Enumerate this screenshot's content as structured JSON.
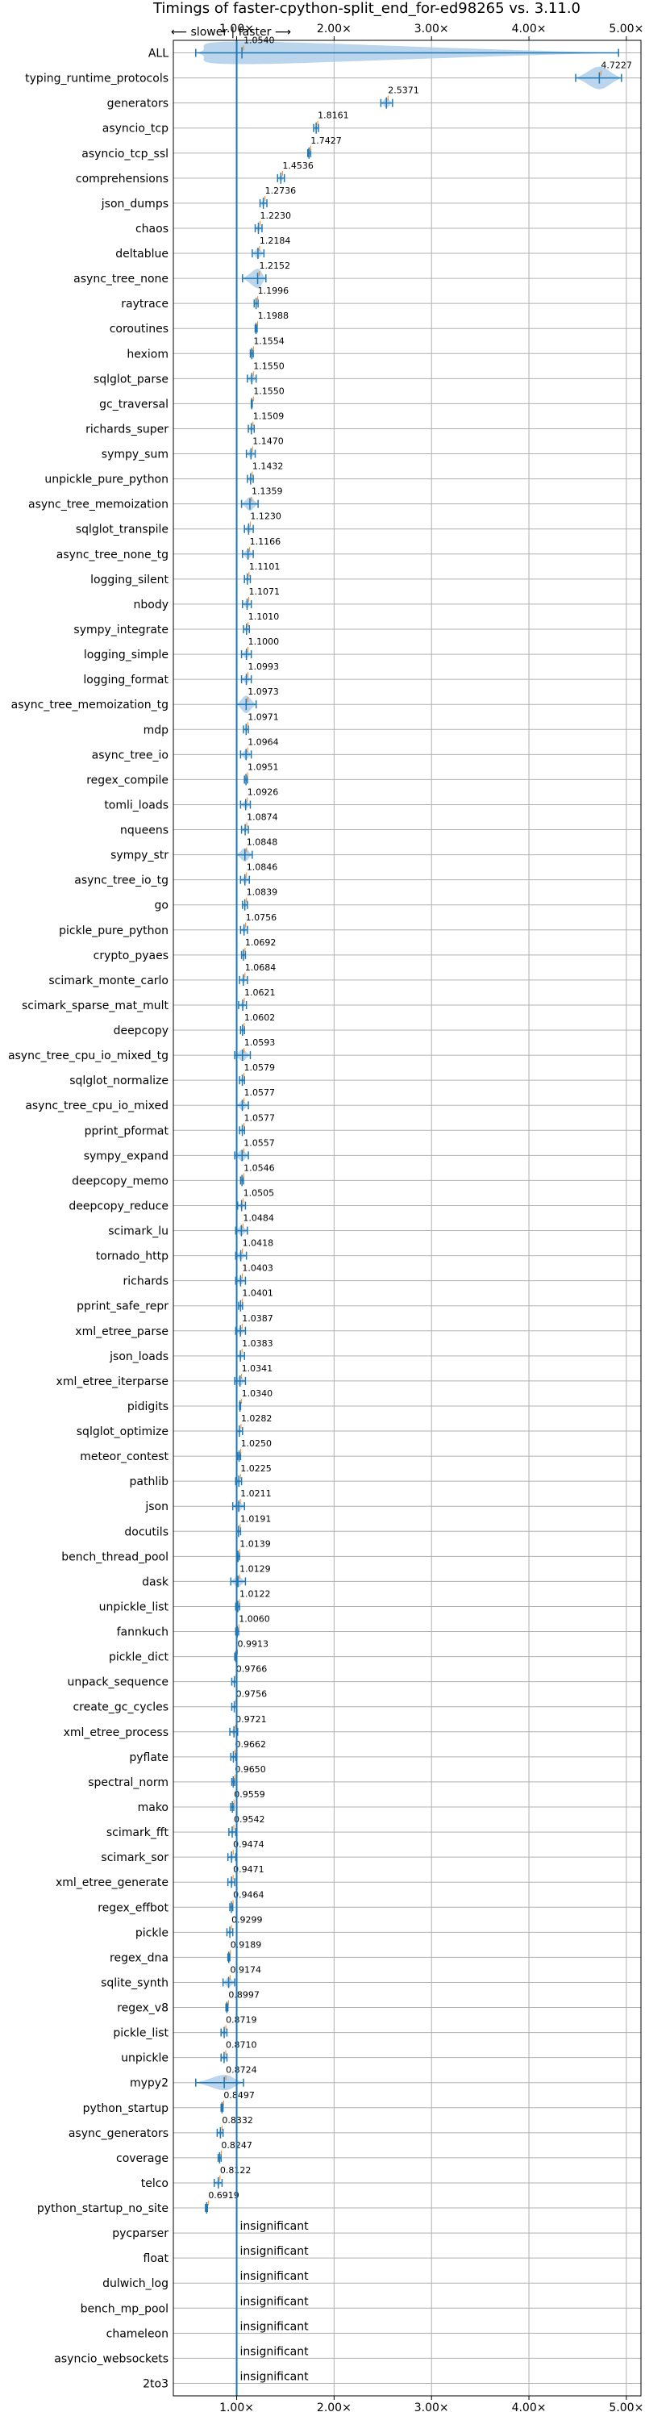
{
  "chart_data": {
    "type": "violin",
    "title": "Timings of faster-cpython-split_end_for-ed98265 vs. 3.11.0",
    "direction_label": "⟵ slower | faster ⟶",
    "xlim": [
      0.35,
      5.15
    ],
    "xticks": [
      1.0,
      2.0,
      3.0,
      4.0,
      5.0
    ],
    "xtick_labels": [
      "1.00×",
      "2.00×",
      "3.00×",
      "4.00×",
      "5.00×"
    ],
    "grid": true,
    "reference_line": 1.0,
    "colors": {
      "body": "#a9cbe7",
      "line": "#1f77b4",
      "median": "#ff7f0e"
    },
    "rows": [
      {
        "name": "ALL",
        "value": 1.054,
        "label": "1.0540",
        "min": 0.58,
        "max": 4.92,
        "spread": 0.25
      },
      {
        "name": "typing_runtime_protocols",
        "value": 4.7227,
        "label": "4.7227",
        "min": 4.48,
        "max": 4.95,
        "spread": 0.2
      },
      {
        "name": "generators",
        "value": 2.5371,
        "label": "2.5371",
        "min": 2.48,
        "max": 2.6,
        "spread": 0.05
      },
      {
        "name": "asyncio_tcp",
        "value": 1.8161,
        "label": "1.8161",
        "min": 1.79,
        "max": 1.84,
        "spread": 0.02
      },
      {
        "name": "asyncio_tcp_ssl",
        "value": 1.7427,
        "label": "1.7427",
        "min": 1.73,
        "max": 1.76,
        "spread": 0.01
      },
      {
        "name": "comprehensions",
        "value": 1.4536,
        "label": "1.4536",
        "min": 1.42,
        "max": 1.49,
        "spread": 0.03
      },
      {
        "name": "json_dumps",
        "value": 1.2736,
        "label": "1.2736",
        "min": 1.24,
        "max": 1.31,
        "spread": 0.03
      },
      {
        "name": "chaos",
        "value": 1.223,
        "label": "1.2230",
        "min": 1.19,
        "max": 1.26,
        "spread": 0.03
      },
      {
        "name": "deltablue",
        "value": 1.2184,
        "label": "1.2184",
        "min": 1.16,
        "max": 1.28,
        "spread": 0.05
      },
      {
        "name": "async_tree_none",
        "value": 1.2152,
        "label": "1.2152",
        "min": 1.06,
        "max": 1.3,
        "spread": 0.1
      },
      {
        "name": "raytrace",
        "value": 1.1996,
        "label": "1.1996",
        "min": 1.18,
        "max": 1.22,
        "spread": 0.02
      },
      {
        "name": "coroutines",
        "value": 1.1988,
        "label": "1.1988",
        "min": 1.19,
        "max": 1.21,
        "spread": 0.01
      },
      {
        "name": "hexiom",
        "value": 1.1554,
        "label": "1.1554",
        "min": 1.14,
        "max": 1.17,
        "spread": 0.01
      },
      {
        "name": "sqlglot_parse",
        "value": 1.155,
        "label": "1.1550",
        "min": 1.11,
        "max": 1.2,
        "spread": 0.04
      },
      {
        "name": "gc_traversal",
        "value": 1.155,
        "label": "1.1550",
        "min": 1.15,
        "max": 1.16,
        "spread": 0.005
      },
      {
        "name": "richards_super",
        "value": 1.1509,
        "label": "1.1509",
        "min": 1.12,
        "max": 1.18,
        "spread": 0.03
      },
      {
        "name": "sympy_sum",
        "value": 1.147,
        "label": "1.1470",
        "min": 1.1,
        "max": 1.19,
        "spread": 0.04
      },
      {
        "name": "unpickle_pure_python",
        "value": 1.1432,
        "label": "1.1432",
        "min": 1.11,
        "max": 1.17,
        "spread": 0.03
      },
      {
        "name": "async_tree_memoization",
        "value": 1.1359,
        "label": "1.1359",
        "min": 1.05,
        "max": 1.22,
        "spread": 0.07
      },
      {
        "name": "sqlglot_transpile",
        "value": 1.123,
        "label": "1.1230",
        "min": 1.08,
        "max": 1.17,
        "spread": 0.04
      },
      {
        "name": "async_tree_none_tg",
        "value": 1.1166,
        "label": "1.1166",
        "min": 1.06,
        "max": 1.17,
        "spread": 0.05
      },
      {
        "name": "logging_silent",
        "value": 1.1101,
        "label": "1.1101",
        "min": 1.08,
        "max": 1.14,
        "spread": 0.02
      },
      {
        "name": "nbody",
        "value": 1.1071,
        "label": "1.1071",
        "min": 1.06,
        "max": 1.15,
        "spread": 0.04
      },
      {
        "name": "sympy_integrate",
        "value": 1.101,
        "label": "1.1010",
        "min": 1.07,
        "max": 1.13,
        "spread": 0.03
      },
      {
        "name": "logging_simple",
        "value": 1.1,
        "label": "1.1000",
        "min": 1.05,
        "max": 1.15,
        "spread": 0.04
      },
      {
        "name": "logging_format",
        "value": 1.0993,
        "label": "1.0993",
        "min": 1.05,
        "max": 1.15,
        "spread": 0.04
      },
      {
        "name": "async_tree_memoization_tg",
        "value": 1.0973,
        "label": "1.0973",
        "min": 1.0,
        "max": 1.2,
        "spread": 0.09
      },
      {
        "name": "mdp",
        "value": 1.0971,
        "label": "1.0971",
        "min": 1.07,
        "max": 1.12,
        "spread": 0.02
      },
      {
        "name": "async_tree_io",
        "value": 1.0964,
        "label": "1.0964",
        "min": 1.04,
        "max": 1.15,
        "spread": 0.05
      },
      {
        "name": "regex_compile",
        "value": 1.0951,
        "label": "1.0951",
        "min": 1.08,
        "max": 1.11,
        "spread": 0.01
      },
      {
        "name": "tomli_loads",
        "value": 1.0926,
        "label": "1.0926",
        "min": 1.04,
        "max": 1.14,
        "spread": 0.04
      },
      {
        "name": "nqueens",
        "value": 1.0874,
        "label": "1.0874",
        "min": 1.05,
        "max": 1.12,
        "spread": 0.03
      },
      {
        "name": "sympy_str",
        "value": 1.0848,
        "label": "1.0848",
        "min": 1.0,
        "max": 1.16,
        "spread": 0.07
      },
      {
        "name": "async_tree_io_tg",
        "value": 1.0846,
        "label": "1.0846",
        "min": 1.04,
        "max": 1.13,
        "spread": 0.04
      },
      {
        "name": "go",
        "value": 1.0839,
        "label": "1.0839",
        "min": 1.06,
        "max": 1.11,
        "spread": 0.02
      },
      {
        "name": "pickle_pure_python",
        "value": 1.0756,
        "label": "1.0756",
        "min": 1.04,
        "max": 1.11,
        "spread": 0.03
      },
      {
        "name": "crypto_pyaes",
        "value": 1.0692,
        "label": "1.0692",
        "min": 1.05,
        "max": 1.09,
        "spread": 0.02
      },
      {
        "name": "scimark_monte_carlo",
        "value": 1.0684,
        "label": "1.0684",
        "min": 1.03,
        "max": 1.11,
        "spread": 0.03
      },
      {
        "name": "scimark_sparse_mat_mult",
        "value": 1.0621,
        "label": "1.0621",
        "min": 1.02,
        "max": 1.1,
        "spread": 0.03
      },
      {
        "name": "deepcopy",
        "value": 1.0602,
        "label": "1.0602",
        "min": 1.04,
        "max": 1.08,
        "spread": 0.02
      },
      {
        "name": "async_tree_cpu_io_mixed_tg",
        "value": 1.0593,
        "label": "1.0593",
        "min": 0.98,
        "max": 1.14,
        "spread": 0.06
      },
      {
        "name": "sqlglot_normalize",
        "value": 1.0579,
        "label": "1.0579",
        "min": 1.03,
        "max": 1.08,
        "spread": 0.02
      },
      {
        "name": "async_tree_cpu_io_mixed",
        "value": 1.0577,
        "label": "1.0577",
        "min": 1.0,
        "max": 1.12,
        "spread": 0.05
      },
      {
        "name": "pprint_pformat",
        "value": 1.0577,
        "label": "1.0577",
        "min": 1.03,
        "max": 1.08,
        "spread": 0.02
      },
      {
        "name": "sympy_expand",
        "value": 1.0557,
        "label": "1.0557",
        "min": 0.98,
        "max": 1.12,
        "spread": 0.06
      },
      {
        "name": "deepcopy_memo",
        "value": 1.0546,
        "label": "1.0546",
        "min": 1.04,
        "max": 1.07,
        "spread": 0.01
      },
      {
        "name": "deepcopy_reduce",
        "value": 1.0505,
        "label": "1.0505",
        "min": 1.01,
        "max": 1.09,
        "spread": 0.03
      },
      {
        "name": "scimark_lu",
        "value": 1.0484,
        "label": "1.0484",
        "min": 0.99,
        "max": 1.11,
        "spread": 0.05
      },
      {
        "name": "tornado_http",
        "value": 1.0418,
        "label": "1.0418",
        "min": 0.99,
        "max": 1.1,
        "spread": 0.04
      },
      {
        "name": "richards",
        "value": 1.0403,
        "label": "1.0403",
        "min": 0.99,
        "max": 1.09,
        "spread": 0.04
      },
      {
        "name": "pprint_safe_repr",
        "value": 1.0401,
        "label": "1.0401",
        "min": 1.02,
        "max": 1.06,
        "spread": 0.02
      },
      {
        "name": "xml_etree_parse",
        "value": 1.0387,
        "label": "1.0387",
        "min": 0.99,
        "max": 1.09,
        "spread": 0.04
      },
      {
        "name": "json_loads",
        "value": 1.0383,
        "label": "1.0383",
        "min": 1.0,
        "max": 1.08,
        "spread": 0.03
      },
      {
        "name": "xml_etree_iterparse",
        "value": 1.0341,
        "label": "1.0341",
        "min": 0.98,
        "max": 1.09,
        "spread": 0.05
      },
      {
        "name": "pidigits",
        "value": 1.034,
        "label": "1.0340",
        "min": 1.03,
        "max": 1.04,
        "spread": 0.005
      },
      {
        "name": "sqlglot_optimize",
        "value": 1.0282,
        "label": "1.0282",
        "min": 1.0,
        "max": 1.06,
        "spread": 0.02
      },
      {
        "name": "meteor_contest",
        "value": 1.025,
        "label": "1.0250",
        "min": 1.01,
        "max": 1.04,
        "spread": 0.01
      },
      {
        "name": "pathlib",
        "value": 1.0225,
        "label": "1.0225",
        "min": 0.99,
        "max": 1.05,
        "spread": 0.03
      },
      {
        "name": "json",
        "value": 1.0211,
        "label": "1.0211",
        "min": 0.96,
        "max": 1.08,
        "spread": 0.05
      },
      {
        "name": "docutils",
        "value": 1.0191,
        "label": "1.0191",
        "min": 1.0,
        "max": 1.04,
        "spread": 0.02
      },
      {
        "name": "bench_thread_pool",
        "value": 1.0139,
        "label": "1.0139",
        "min": 1.0,
        "max": 1.03,
        "spread": 0.01
      },
      {
        "name": "dask",
        "value": 1.0129,
        "label": "1.0129",
        "min": 0.94,
        "max": 1.09,
        "spread": 0.06
      },
      {
        "name": "unpickle_list",
        "value": 1.0122,
        "label": "1.0122",
        "min": 0.99,
        "max": 1.03,
        "spread": 0.02
      },
      {
        "name": "fannkuch",
        "value": 1.006,
        "label": "1.0060",
        "min": 0.99,
        "max": 1.02,
        "spread": 0.01
      },
      {
        "name": "pickle_dict",
        "value": 0.9913,
        "label": "0.9913",
        "min": 0.98,
        "max": 1.0,
        "spread": 0.01
      },
      {
        "name": "unpack_sequence",
        "value": 0.9766,
        "label": "0.9766",
        "min": 0.95,
        "max": 1.0,
        "spread": 0.02
      },
      {
        "name": "create_gc_cycles",
        "value": 0.9756,
        "label": "0.9756",
        "min": 0.95,
        "max": 1.0,
        "spread": 0.02
      },
      {
        "name": "xml_etree_process",
        "value": 0.9721,
        "label": "0.9721",
        "min": 0.93,
        "max": 1.01,
        "spread": 0.03
      },
      {
        "name": "pyflate",
        "value": 0.9662,
        "label": "0.9662",
        "min": 0.94,
        "max": 0.99,
        "spread": 0.02
      },
      {
        "name": "spectral_norm",
        "value": 0.965,
        "label": "0.9650",
        "min": 0.95,
        "max": 0.98,
        "spread": 0.01
      },
      {
        "name": "mako",
        "value": 0.9559,
        "label": "0.9559",
        "min": 0.94,
        "max": 0.97,
        "spread": 0.01
      },
      {
        "name": "scimark_fft",
        "value": 0.9542,
        "label": "0.9542",
        "min": 0.92,
        "max": 0.99,
        "spread": 0.03
      },
      {
        "name": "scimark_sor",
        "value": 0.9474,
        "label": "0.9474",
        "min": 0.91,
        "max": 0.99,
        "spread": 0.03
      },
      {
        "name": "xml_etree_generate",
        "value": 0.9471,
        "label": "0.9471",
        "min": 0.91,
        "max": 0.98,
        "spread": 0.03
      },
      {
        "name": "regex_effbot",
        "value": 0.9464,
        "label": "0.9464",
        "min": 0.93,
        "max": 0.96,
        "spread": 0.01
      },
      {
        "name": "pickle",
        "value": 0.9299,
        "label": "0.9299",
        "min": 0.9,
        "max": 0.96,
        "spread": 0.02
      },
      {
        "name": "regex_dna",
        "value": 0.9189,
        "label": "0.9189",
        "min": 0.91,
        "max": 0.93,
        "spread": 0.01
      },
      {
        "name": "sqlite_synth",
        "value": 0.9174,
        "label": "0.9174",
        "min": 0.86,
        "max": 0.98,
        "spread": 0.05
      },
      {
        "name": "regex_v8",
        "value": 0.8997,
        "label": "0.8997",
        "min": 0.89,
        "max": 0.91,
        "spread": 0.01
      },
      {
        "name": "pickle_list",
        "value": 0.8719,
        "label": "0.8719",
        "min": 0.84,
        "max": 0.9,
        "spread": 0.03
      },
      {
        "name": "unpickle",
        "value": 0.871,
        "label": "0.8710",
        "min": 0.84,
        "max": 0.9,
        "spread": 0.03
      },
      {
        "name": "mypy2",
        "value": 0.8724,
        "label": "0.8724",
        "min": 0.58,
        "max": 1.07,
        "spread": 0.08
      },
      {
        "name": "python_startup",
        "value": 0.8497,
        "label": "0.8497",
        "min": 0.84,
        "max": 0.86,
        "spread": 0.005
      },
      {
        "name": "async_generators",
        "value": 0.8332,
        "label": "0.8332",
        "min": 0.8,
        "max": 0.86,
        "spread": 0.03
      },
      {
        "name": "coverage",
        "value": 0.8247,
        "label": "0.8247",
        "min": 0.81,
        "max": 0.84,
        "spread": 0.01
      },
      {
        "name": "telco",
        "value": 0.8122,
        "label": "0.8122",
        "min": 0.77,
        "max": 0.85,
        "spread": 0.03
      },
      {
        "name": "python_startup_no_site",
        "value": 0.6919,
        "label": "0.6919",
        "min": 0.68,
        "max": 0.7,
        "spread": 0.005
      },
      {
        "name": "pycparser",
        "value": 1.0,
        "label": "insignificant",
        "min": null,
        "max": null,
        "spread": 0
      },
      {
        "name": "float",
        "value": 1.0,
        "label": "insignificant",
        "min": null,
        "max": null,
        "spread": 0
      },
      {
        "name": "dulwich_log",
        "value": 1.0,
        "label": "insignificant",
        "min": null,
        "max": null,
        "spread": 0
      },
      {
        "name": "bench_mp_pool",
        "value": 1.0,
        "label": "insignificant",
        "min": null,
        "max": null,
        "spread": 0
      },
      {
        "name": "chameleon",
        "value": 1.0,
        "label": "insignificant",
        "min": null,
        "max": null,
        "spread": 0
      },
      {
        "name": "asyncio_websockets",
        "value": 1.0,
        "label": "insignificant",
        "min": null,
        "max": null,
        "spread": 0
      },
      {
        "name": "2to3",
        "value": 1.0,
        "label": "insignificant",
        "min": null,
        "max": null,
        "spread": 0
      }
    ]
  }
}
